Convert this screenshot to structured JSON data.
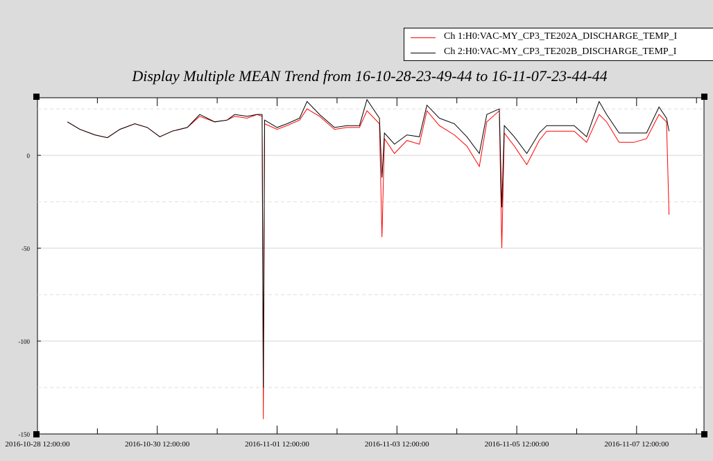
{
  "chart_data": {
    "type": "line",
    "title": "Display Multiple MEAN Trend from 16-10-28-23-49-44 to 16-11-07-23-44-44",
    "xlabel": "",
    "ylabel": "",
    "x_ticklabels": [
      "2016-10-28 12:00:00",
      "2016-10-30 12:00:00",
      "2016-11-01 12:00:00",
      "2016-11-03 12:00:00",
      "2016-11-05 12:00:00",
      "2016-11-07 12:00:00"
    ],
    "y_ticklabels": [
      "0",
      "-50",
      "-100",
      "-150"
    ],
    "y_ticks": [
      0,
      -50,
      -100,
      -150
    ],
    "ylim": [
      -150,
      31
    ],
    "xlim": [
      "2016-10-28 12:00:00",
      "2016-11-08 15:00:00"
    ],
    "grid": true,
    "legend_position": "top-right",
    "series": [
      {
        "name": "Ch 1:H0:VAC-MY_CP3_TE202A_DISCHARGE_TEMP_DEGF",
        "legend_label": "Ch 1:H0:VAC-MY_CP3_TE202A_DISCHARGE_TEMP_I",
        "color": "#ff0000",
        "points": [
          [
            "2016-10-29 00:00",
            18
          ],
          [
            "2016-10-29 05:00",
            14
          ],
          [
            "2016-10-29 11:00",
            11
          ],
          [
            "2016-10-29 16:00",
            9.5
          ],
          [
            "2016-10-29 21:00",
            14
          ],
          [
            "2016-10-30 03:00",
            17
          ],
          [
            "2016-10-30 08:00",
            15
          ],
          [
            "2016-10-30 13:00",
            10
          ],
          [
            "2016-10-30 18:00",
            13
          ],
          [
            "2016-10-31 00:00",
            15
          ],
          [
            "2016-10-31 05:00",
            21
          ],
          [
            "2016-10-31 11:00",
            18
          ],
          [
            "2016-10-31 16:00",
            19
          ],
          [
            "2016-10-31 19:00",
            21
          ],
          [
            "2016-11-01 00:00",
            20
          ],
          [
            "2016-11-01 04:00",
            22
          ],
          [
            "2016-11-01 06:00",
            21
          ],
          [
            "2016-11-01 06:30",
            -142
          ],
          [
            "2016-11-01 07:00",
            17
          ],
          [
            "2016-11-01 12:00",
            14
          ],
          [
            "2016-11-01 16:00",
            16
          ],
          [
            "2016-11-01 21:00",
            19
          ],
          [
            "2016-11-02 00:00",
            25
          ],
          [
            "2016-11-02 05:00",
            21
          ],
          [
            "2016-11-02 11:00",
            14
          ],
          [
            "2016-11-02 16:00",
            15
          ],
          [
            "2016-11-02 21:00",
            15
          ],
          [
            "2016-11-03 00:00",
            24
          ],
          [
            "2016-11-03 05:00",
            17
          ],
          [
            "2016-11-03 06:00",
            -44
          ],
          [
            "2016-11-03 07:00",
            9
          ],
          [
            "2016-11-03 11:00",
            1
          ],
          [
            "2016-11-03 16:00",
            8
          ],
          [
            "2016-11-03 21:00",
            6
          ],
          [
            "2016-11-04 00:00",
            24
          ],
          [
            "2016-11-04 05:00",
            16
          ],
          [
            "2016-11-04 11:00",
            11
          ],
          [
            "2016-11-04 16:00",
            5
          ],
          [
            "2016-11-04 21:00",
            -6
          ],
          [
            "2016-11-05 00:00",
            18
          ],
          [
            "2016-11-05 05:00",
            24
          ],
          [
            "2016-11-05 06:00",
            -50
          ],
          [
            "2016-11-05 07:00",
            12
          ],
          [
            "2016-11-05 11:00",
            5
          ],
          [
            "2016-11-05 16:00",
            -5
          ],
          [
            "2016-11-05 21:00",
            8
          ],
          [
            "2016-11-06 00:00",
            13
          ],
          [
            "2016-11-06 05:00",
            13
          ],
          [
            "2016-11-06 11:00",
            13
          ],
          [
            "2016-11-06 16:00",
            7
          ],
          [
            "2016-11-06 21:00",
            22
          ],
          [
            "2016-11-07 00:00",
            18
          ],
          [
            "2016-11-07 05:00",
            7
          ],
          [
            "2016-11-07 11:00",
            7
          ],
          [
            "2016-11-07 16:00",
            9
          ],
          [
            "2016-11-07 21:00",
            22
          ],
          [
            "2016-11-08 00:00",
            18
          ],
          [
            "2016-11-08 01:00",
            -32
          ]
        ]
      },
      {
        "name": "Ch 2:H0:VAC-MY_CP3_TE202B_DISCHARGE_TEMP_DEGF",
        "legend_label": "Ch 2:H0:VAC-MY_CP3_TE202B_DISCHARGE_TEMP_I",
        "color": "#000000",
        "points": [
          [
            "2016-10-29 00:00",
            18
          ],
          [
            "2016-10-29 05:00",
            14
          ],
          [
            "2016-10-29 11:00",
            11
          ],
          [
            "2016-10-29 16:00",
            9.5
          ],
          [
            "2016-10-29 21:00",
            14
          ],
          [
            "2016-10-30 03:00",
            17
          ],
          [
            "2016-10-30 08:00",
            15
          ],
          [
            "2016-10-30 13:00",
            10
          ],
          [
            "2016-10-30 18:00",
            13
          ],
          [
            "2016-10-31 00:00",
            15
          ],
          [
            "2016-10-31 05:00",
            22
          ],
          [
            "2016-10-31 11:00",
            18
          ],
          [
            "2016-10-31 16:00",
            19
          ],
          [
            "2016-10-31 19:00",
            22
          ],
          [
            "2016-11-01 00:00",
            21
          ],
          [
            "2016-11-01 04:00",
            22
          ],
          [
            "2016-11-01 06:00",
            22
          ],
          [
            "2016-11-01 06:30",
            -125
          ],
          [
            "2016-11-01 07:00",
            19
          ],
          [
            "2016-11-01 12:00",
            15
          ],
          [
            "2016-11-01 16:00",
            17
          ],
          [
            "2016-11-01 21:00",
            20
          ],
          [
            "2016-11-02 00:00",
            29
          ],
          [
            "2016-11-02 05:00",
            22
          ],
          [
            "2016-11-02 11:00",
            15
          ],
          [
            "2016-11-02 16:00",
            16
          ],
          [
            "2016-11-02 21:00",
            16
          ],
          [
            "2016-11-03 00:00",
            30
          ],
          [
            "2016-11-03 05:00",
            20
          ],
          [
            "2016-11-03 06:00",
            -12
          ],
          [
            "2016-11-03 07:00",
            12
          ],
          [
            "2016-11-03 11:00",
            6
          ],
          [
            "2016-11-03 16:00",
            11
          ],
          [
            "2016-11-03 21:00",
            10
          ],
          [
            "2016-11-04 00:00",
            27
          ],
          [
            "2016-11-04 05:00",
            20
          ],
          [
            "2016-11-04 11:00",
            17
          ],
          [
            "2016-11-04 16:00",
            10
          ],
          [
            "2016-11-04 21:00",
            1
          ],
          [
            "2016-11-05 00:00",
            22
          ],
          [
            "2016-11-05 05:00",
            25
          ],
          [
            "2016-11-05 06:00",
            -28
          ],
          [
            "2016-11-05 07:00",
            16
          ],
          [
            "2016-11-05 11:00",
            10
          ],
          [
            "2016-11-05 16:00",
            1
          ],
          [
            "2016-11-05 21:00",
            12
          ],
          [
            "2016-11-06 00:00",
            16
          ],
          [
            "2016-11-06 05:00",
            16
          ],
          [
            "2016-11-06 11:00",
            16
          ],
          [
            "2016-11-06 16:00",
            10
          ],
          [
            "2016-11-06 21:00",
            29
          ],
          [
            "2016-11-07 00:00",
            22
          ],
          [
            "2016-11-07 05:00",
            12
          ],
          [
            "2016-11-07 11:00",
            12
          ],
          [
            "2016-11-07 16:00",
            12
          ],
          [
            "2016-11-07 21:00",
            26
          ],
          [
            "2016-11-08 00:00",
            20
          ],
          [
            "2016-11-08 01:00",
            13
          ]
        ]
      }
    ]
  }
}
